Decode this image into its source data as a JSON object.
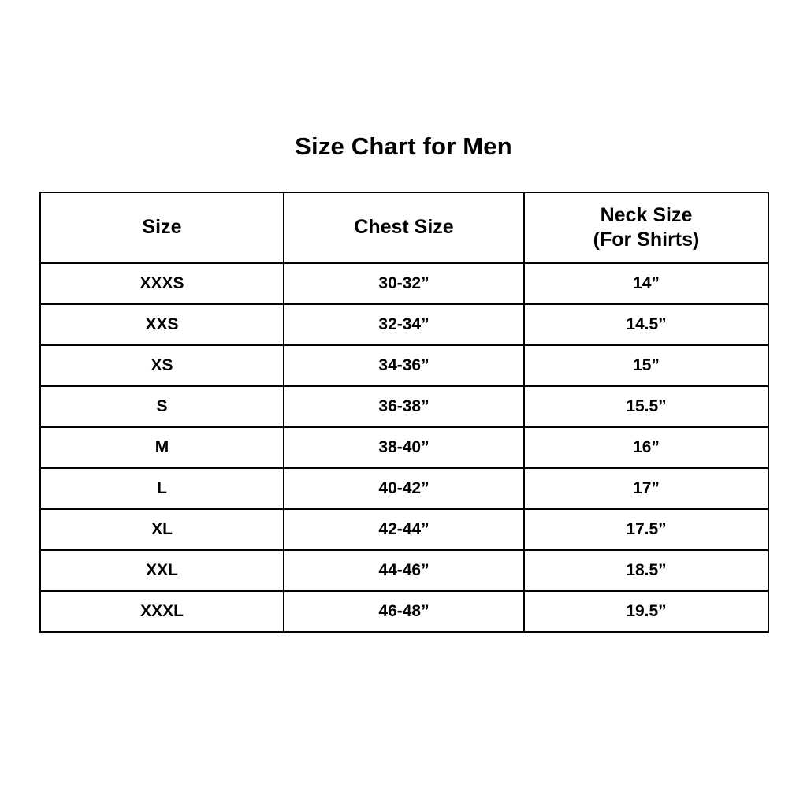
{
  "page": {
    "title": "Size Chart for Men"
  },
  "table": {
    "headers": [
      {
        "title": "Size",
        "subtitle": ""
      },
      {
        "title": "Chest Size",
        "subtitle": ""
      },
      {
        "title": "Neck Size",
        "subtitle": "(For Shirts)"
      }
    ],
    "rows": [
      {
        "size": "XXXS",
        "chest": "30-32”",
        "neck": "14”"
      },
      {
        "size": "XXS",
        "chest": "32-34”",
        "neck": "14.5”"
      },
      {
        "size": "XS",
        "chest": "34-36”",
        "neck": "15”"
      },
      {
        "size": "S",
        "chest": "36-38”",
        "neck": "15.5”"
      },
      {
        "size": "M",
        "chest": "38-40”",
        "neck": "16”"
      },
      {
        "size": "L",
        "chest": "40-42”",
        "neck": "17”"
      },
      {
        "size": "XL",
        "chest": "42-44”",
        "neck": "17.5”"
      },
      {
        "size": "XXL",
        "chest": "44-46”",
        "neck": "18.5”"
      },
      {
        "size": "XXXL",
        "chest": "46-48”",
        "neck": "19.5”"
      }
    ]
  },
  "chart_data": {
    "type": "table",
    "title": "Size Chart for Men",
    "columns": [
      "Size",
      "Chest Size",
      "Neck Size (For Shirts)"
    ],
    "rows": [
      [
        "XXXS",
        "30-32”",
        "14”"
      ],
      [
        "XXS",
        "32-34”",
        "14.5”"
      ],
      [
        "XS",
        "34-36”",
        "15”"
      ],
      [
        "S",
        "36-38”",
        "15.5”"
      ],
      [
        "M",
        "38-40”",
        "16”"
      ],
      [
        "L",
        "40-42”",
        "17”"
      ],
      [
        "XL",
        "42-44”",
        "17.5”"
      ],
      [
        "XXL",
        "44-46”",
        "18.5”"
      ],
      [
        "XXXL",
        "46-48”",
        "19.5”"
      ]
    ],
    "colors": {
      "text": "#000000",
      "border": "#000000",
      "background": "#ffffff"
    },
    "layout": {
      "grid": true,
      "header_row": true,
      "alignment": "center"
    }
  }
}
